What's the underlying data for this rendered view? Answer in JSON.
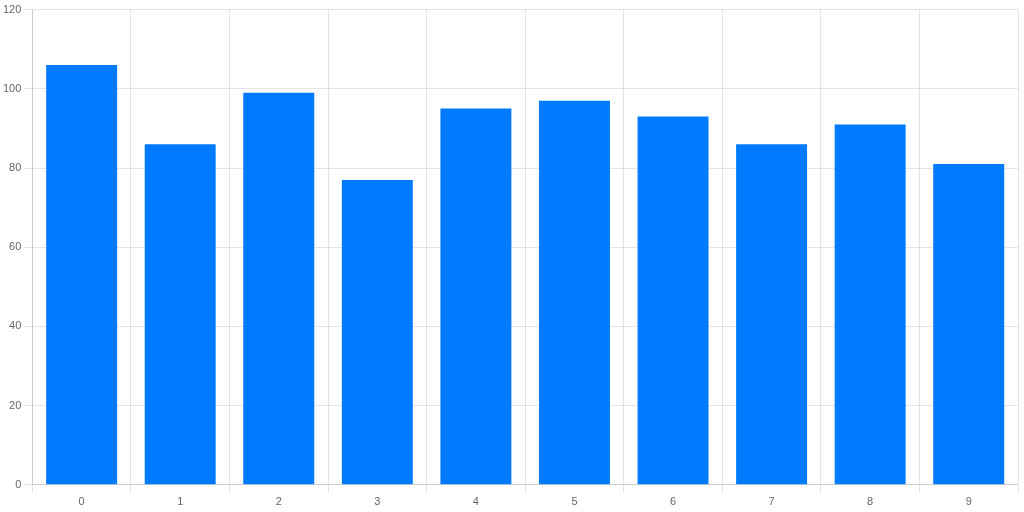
{
  "chart_data": {
    "type": "bar",
    "categories": [
      "0",
      "1",
      "2",
      "3",
      "4",
      "5",
      "6",
      "7",
      "8",
      "9"
    ],
    "values": [
      106,
      86,
      99,
      77,
      95,
      97,
      93,
      86,
      91,
      81
    ],
    "color": "#007bff",
    "ylim": [
      0,
      120
    ],
    "yticks": [
      0,
      20,
      40,
      60,
      80,
      100,
      120
    ],
    "grid": true
  }
}
